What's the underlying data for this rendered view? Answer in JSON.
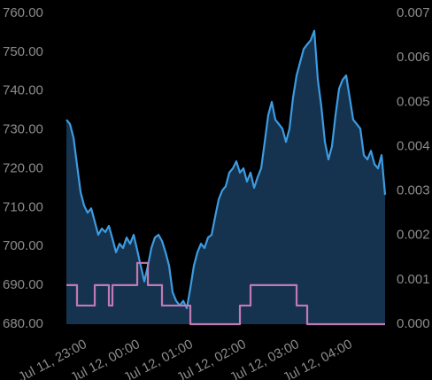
{
  "chart_data": {
    "type": "line",
    "x": [
      22.633,
      22.7,
      22.767,
      22.833,
      22.9,
      22.967,
      23.033,
      23.1,
      23.167,
      23.233,
      23.3,
      23.367,
      23.433,
      23.5,
      23.567,
      23.633,
      23.7,
      23.767,
      23.833,
      23.9,
      23.967,
      24.033,
      24.1,
      24.167,
      24.233,
      24.3,
      24.367,
      24.433,
      24.5,
      24.567,
      24.633,
      24.7,
      24.767,
      24.833,
      24.9,
      24.967,
      25.033,
      25.1,
      25.167,
      25.233,
      25.3,
      25.367,
      25.433,
      25.5,
      25.567,
      25.633,
      25.7,
      25.767,
      25.833,
      25.9,
      25.967,
      26.033,
      26.1,
      26.167,
      26.233,
      26.3,
      26.367,
      26.433,
      26.5,
      26.567,
      26.633,
      26.7,
      26.767,
      26.833,
      26.9,
      26.967,
      27.033,
      27.1,
      27.167,
      27.233,
      27.3,
      27.367,
      27.433,
      27.5,
      27.567,
      27.633,
      27.7,
      27.767,
      27.833,
      27.9,
      27.967,
      28.033,
      28.1,
      28.167,
      28.233,
      28.3,
      28.367,
      28.433,
      28.5,
      28.567,
      28.633
    ],
    "series": [
      {
        "color": "#3d9be0",
        "area_color": "#15334f",
        "values": [
          732.6,
          731.5,
          728,
          721,
          714,
          710.5,
          708.7,
          709.8,
          706.4,
          703,
          704.6,
          703.7,
          705.3,
          702,
          698.5,
          700.7,
          699.6,
          702.3,
          700.7,
          703,
          699,
          695,
          691,
          695,
          699.6,
          702.3,
          703,
          701.4,
          698.5,
          695,
          688.2,
          686,
          684.8,
          686,
          684.1,
          689.3,
          695,
          698.5,
          700.7,
          699.6,
          702.3,
          703,
          707.6,
          712.1,
          714.4,
          715.5,
          719,
          720.1,
          721.9,
          719,
          720.1,
          716.7,
          719,
          715.1,
          717.8,
          720.1,
          726.9,
          733.8,
          737.2,
          732.6,
          731.5,
          730.3,
          726.9,
          730.3,
          738.3,
          744,
          747.4,
          750.8,
          752,
          753.1,
          755.5,
          742.9,
          736,
          726.9,
          722.4,
          725.8,
          733.8,
          740.6,
          742.9,
          744,
          738.3,
          732.6,
          731.5,
          730.3,
          723.5,
          722.4,
          724.6,
          721.2,
          720.1,
          723.5,
          713.3
        ]
      },
      {
        "color": "#c27ab4",
        "axis": "y2",
        "step": true,
        "values": [
          0.00088,
          0.00088,
          0.00088,
          0.00042,
          0.00042,
          0.00042,
          0.00042,
          0.00042,
          0.00088,
          0.00088,
          0.00088,
          0.00088,
          0.00042,
          0.00088,
          0.00088,
          0.00088,
          0.00088,
          0.00088,
          0.00088,
          0.00088,
          0.00138,
          0.00138,
          0.00138,
          0.00088,
          0.00088,
          0.00088,
          0.00088,
          0.00042,
          0.00042,
          0.00042,
          0.00042,
          0.00042,
          0.00042,
          0.00042,
          0.00042,
          0,
          0,
          0,
          0,
          0,
          0,
          0,
          0,
          0,
          0,
          0,
          0,
          0,
          0,
          0.00042,
          0.00042,
          0.00042,
          0.00088,
          0.00088,
          0.00088,
          0.00088,
          0.00088,
          0.00088,
          0.00088,
          0.00088,
          0.00088,
          0.00088,
          0.00088,
          0.00088,
          0.00088,
          0.00042,
          0.00042,
          0.00042,
          0,
          0,
          0,
          0,
          0,
          0,
          0,
          0,
          0,
          0,
          0,
          0,
          0,
          0,
          0,
          0,
          0,
          0,
          0,
          0,
          0,
          0,
          0
        ]
      }
    ],
    "xlim": [
      22.633,
      28.633
    ],
    "xticks": [
      {
        "value": 23,
        "label": "Jul 11, 23:00"
      },
      {
        "value": 24,
        "label": "Jul 12, 00:00"
      },
      {
        "value": 25,
        "label": "Jul 12, 01:00"
      },
      {
        "value": 26,
        "label": "Jul 12, 02:00"
      },
      {
        "value": 27,
        "label": "Jul 12, 03:00"
      },
      {
        "value": 28,
        "label": "Jul 12, 04:00"
      }
    ],
    "ylim": [
      680,
      760
    ],
    "yticks": [
      {
        "value": 680,
        "label": "680.00"
      },
      {
        "value": 690,
        "label": "690.00"
      },
      {
        "value": 700,
        "label": "700.00"
      },
      {
        "value": 710,
        "label": "710.00"
      },
      {
        "value": 720,
        "label": "720.00"
      },
      {
        "value": 730,
        "label": "730.00"
      },
      {
        "value": 740,
        "label": "740.00"
      },
      {
        "value": 750,
        "label": "750.00"
      },
      {
        "value": 760,
        "label": "760.00"
      }
    ],
    "y2lim": [
      0,
      0.007
    ],
    "y2ticks": [
      {
        "value": 0,
        "label": "0.000"
      },
      {
        "value": 0.001,
        "label": "0.001"
      },
      {
        "value": 0.002,
        "label": "0.002"
      },
      {
        "value": 0.003,
        "label": "0.003"
      },
      {
        "value": 0.004,
        "label": "0.004"
      },
      {
        "value": 0.005,
        "label": "0.005"
      },
      {
        "value": 0.006,
        "label": "0.006"
      },
      {
        "value": 0.007,
        "label": "0.007"
      }
    ]
  }
}
